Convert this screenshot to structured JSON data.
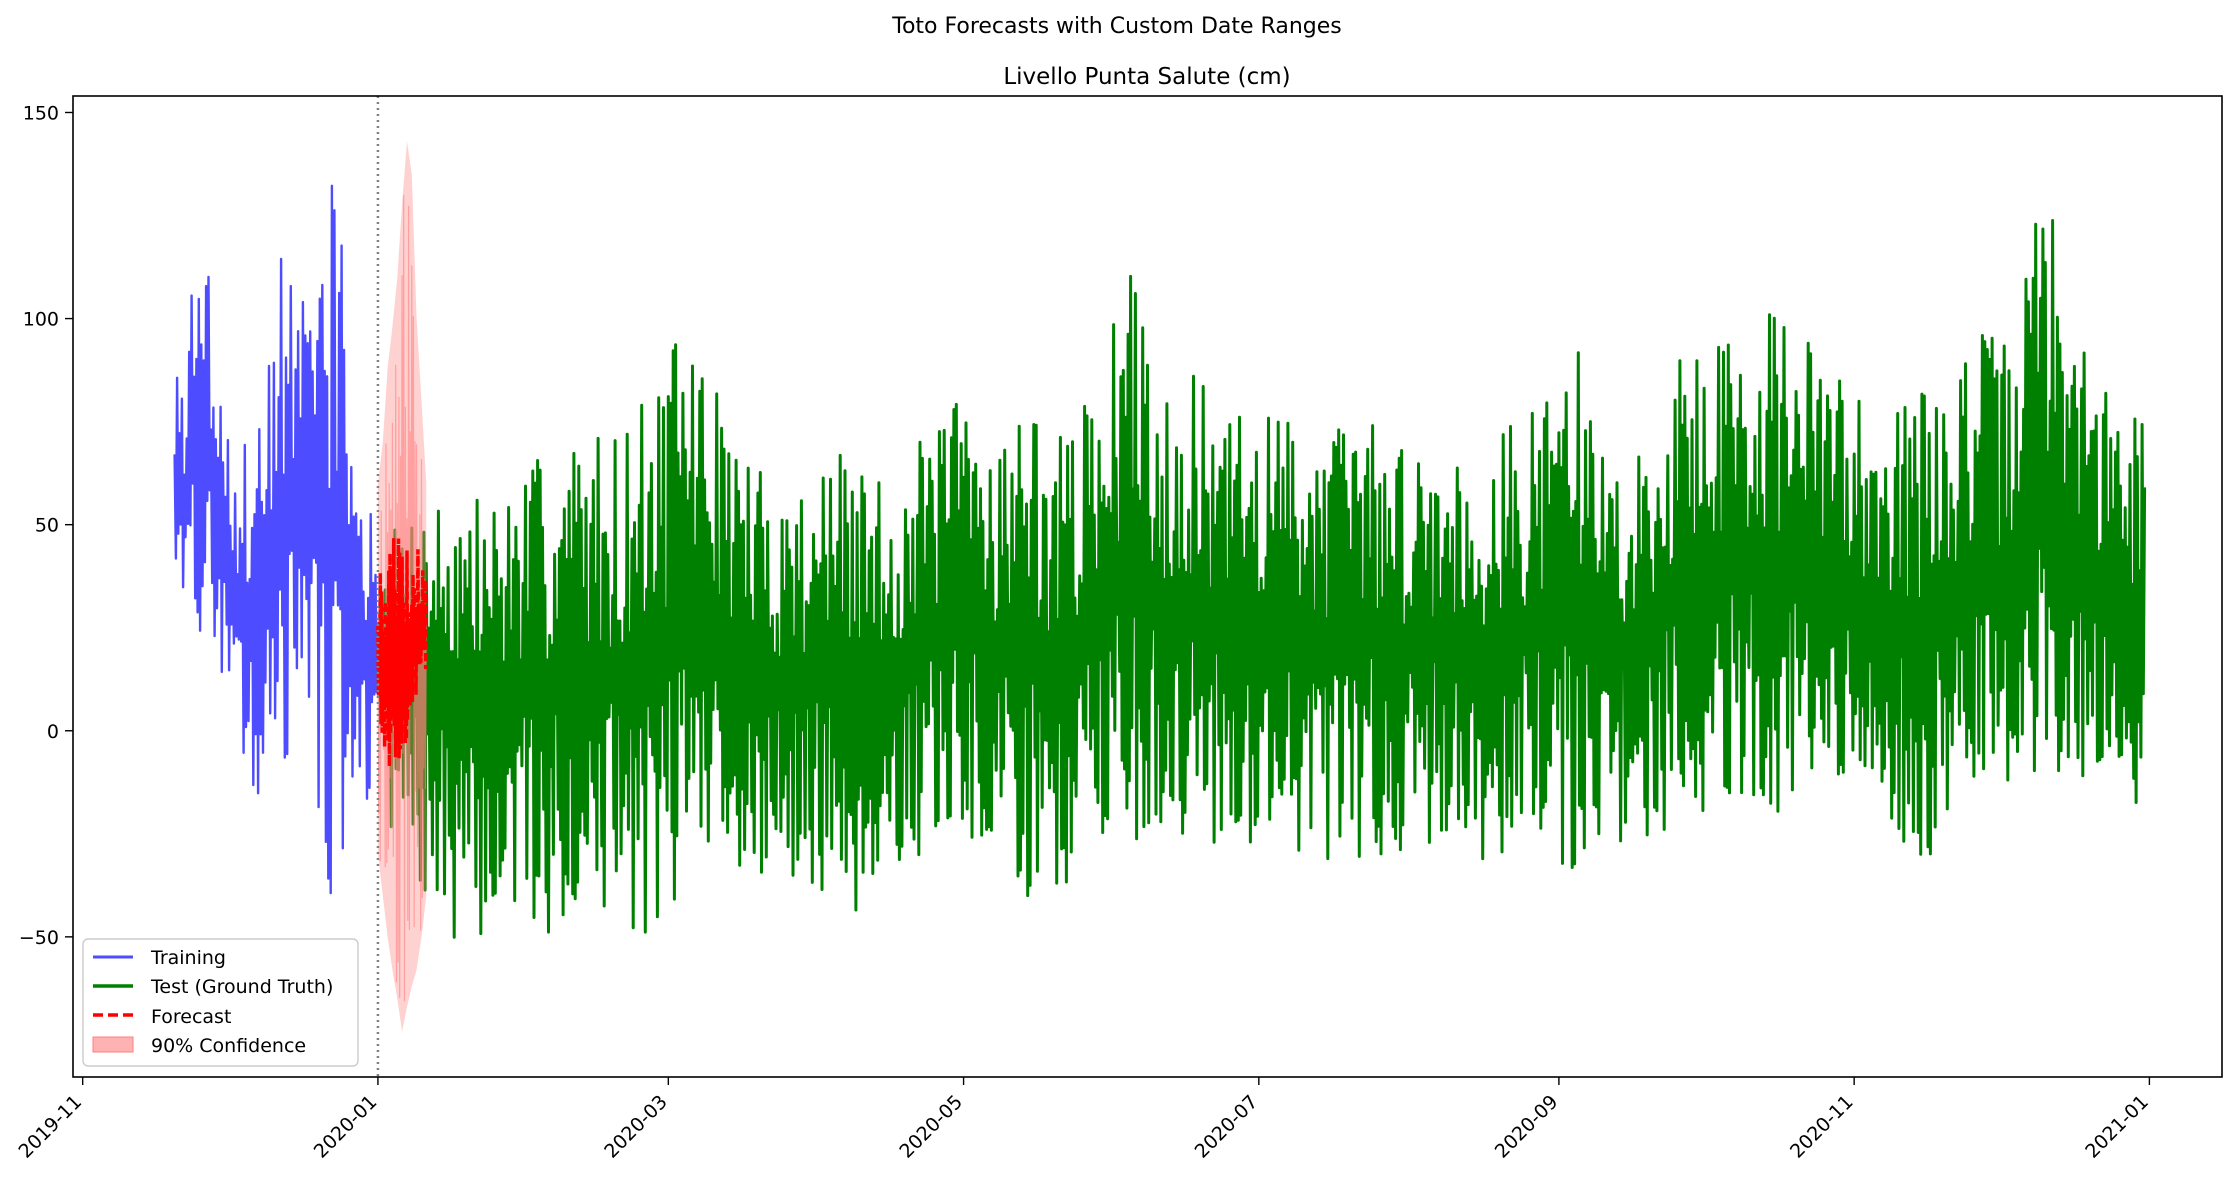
{
  "figure": {
    "suptitle": "Toto Forecasts with Custom Date Ranges"
  },
  "chart_data": {
    "type": "line",
    "title": "Livello Punta Salute (cm)",
    "xlabel": "",
    "ylabel": "",
    "x_range": [
      "2019-10-30",
      "2021-01-16"
    ],
    "ylim": [
      -84,
      154
    ],
    "x_ticks": [
      "2019-11",
      "2020-01",
      "2020-03",
      "2020-05",
      "2020-07",
      "2020-09",
      "2020-11",
      "2021-01"
    ],
    "y_ticks": [
      -50,
      0,
      50,
      100,
      150
    ],
    "y_tick_labels": [
      "−50",
      "0",
      "50",
      "100",
      "150"
    ],
    "grid": false,
    "legend_position": "lower-left",
    "forecast_start": "2020-01-01",
    "series": [
      {
        "name": "Training",
        "kind": "line",
        "color": "#4d4dff",
        "x": [
          "2019-11-20",
          "2019-11-22",
          "2019-11-24",
          "2019-11-26",
          "2019-11-28",
          "2019-11-30",
          "2019-12-02",
          "2019-12-04",
          "2019-12-06",
          "2019-12-08",
          "2019-12-10",
          "2019-12-12",
          "2019-12-14",
          "2019-12-16",
          "2019-12-18",
          "2019-12-20",
          "2019-12-22",
          "2019-12-24",
          "2019-12-26",
          "2019-12-28",
          "2019-12-30",
          "2020-01-01"
        ],
        "upper": [
          88,
          93,
          129,
          121,
          110,
          83,
          64,
          70,
          74,
          85,
          95,
          115,
          112,
          103,
          118,
          143,
          139,
          130,
          96,
          60,
          55,
          50
        ],
        "lower": [
          27,
          22,
          14,
          12,
          15,
          14,
          8,
          -10,
          -25,
          -20,
          -15,
          -10,
          -5,
          3,
          8,
          -25,
          -46,
          -35,
          -20,
          -18,
          -20,
          -15
        ]
      },
      {
        "name": "Test (Ground Truth)",
        "kind": "line",
        "color": "#008000",
        "x": [
          "2020-01-02",
          "2020-01-09",
          "2020-01-16",
          "2020-01-23",
          "2020-01-30",
          "2020-02-06",
          "2020-02-13",
          "2020-02-20",
          "2020-02-27",
          "2020-03-05",
          "2020-03-12",
          "2020-03-19",
          "2020-03-26",
          "2020-04-02",
          "2020-04-09",
          "2020-04-16",
          "2020-04-23",
          "2020-04-30",
          "2020-05-07",
          "2020-05-14",
          "2020-05-21",
          "2020-05-28",
          "2020-06-04",
          "2020-06-11",
          "2020-06-18",
          "2020-06-25",
          "2020-07-02",
          "2020-07-09",
          "2020-07-16",
          "2020-07-23",
          "2020-07-30",
          "2020-08-06",
          "2020-08-13",
          "2020-08-20",
          "2020-08-27",
          "2020-09-03",
          "2020-09-10",
          "2020-09-17",
          "2020-09-24",
          "2020-10-01",
          "2020-10-08",
          "2020-10-15",
          "2020-10-22",
          "2020-10-29",
          "2020-11-05",
          "2020-11-12",
          "2020-11-19",
          "2020-11-26",
          "2020-12-03",
          "2020-12-10",
          "2020-12-17",
          "2020-12-24",
          "2020-12-31"
        ],
        "upper": [
          45,
          58,
          60,
          58,
          62,
          70,
          73,
          74,
          84,
          101,
          80,
          65,
          60,
          68,
          66,
          60,
          72,
          82,
          76,
          80,
          72,
          82,
          114,
          87,
          86,
          76,
          79,
          78,
          75,
          78,
          70,
          72,
          68,
          74,
          78,
          101,
          70,
          65,
          90,
          96,
          98,
          104,
          96,
          88,
          86,
          82,
          85,
          98,
          95,
          137,
          98,
          80,
          81
        ],
        "lower": [
          -20,
          -40,
          -50,
          -52,
          -44,
          -50,
          -43,
          -48,
          -50,
          -35,
          -30,
          -42,
          -36,
          -40,
          -45,
          -35,
          -30,
          -25,
          -36,
          -40,
          -42,
          -25,
          -30,
          -28,
          -26,
          -30,
          -28,
          -30,
          -33,
          -30,
          -30,
          -28,
          -32,
          -30,
          -28,
          -39,
          -25,
          -29,
          -24,
          -20,
          -18,
          -20,
          -22,
          -24,
          -26,
          -35,
          -30,
          -20,
          -18,
          -10,
          -15,
          -12,
          -25
        ]
      },
      {
        "name": "Forecast",
        "kind": "dashed-line",
        "color": "#ff0000",
        "x": [
          "2020-01-01",
          "2020-01-02",
          "2020-01-03",
          "2020-01-04",
          "2020-01-05",
          "2020-01-06",
          "2020-01-07",
          "2020-01-08",
          "2020-01-09",
          "2020-01-10",
          "2020-01-11"
        ],
        "upper": [
          44,
          46,
          40,
          47,
          48,
          45,
          49,
          47,
          46,
          44,
          35
        ],
        "lower": [
          -10,
          -5,
          -12,
          -8,
          -15,
          -10,
          -5,
          0,
          5,
          10,
          15
        ]
      },
      {
        "name": "90% Confidence",
        "kind": "band",
        "color": "#ff7f7f",
        "x": [
          "2020-01-01",
          "2020-01-02",
          "2020-01-03",
          "2020-01-04",
          "2020-01-05",
          "2020-01-06",
          "2020-01-07",
          "2020-01-08",
          "2020-01-09",
          "2020-01-10",
          "2020-01-11"
        ],
        "upper": [
          60,
          70,
          88,
          98,
          110,
          128,
          143,
          135,
          100,
          80,
          60
        ],
        "lower": [
          -30,
          -40,
          -50,
          -58,
          -65,
          -73,
          -67,
          -62,
          -58,
          -50,
          -40
        ]
      }
    ]
  }
}
